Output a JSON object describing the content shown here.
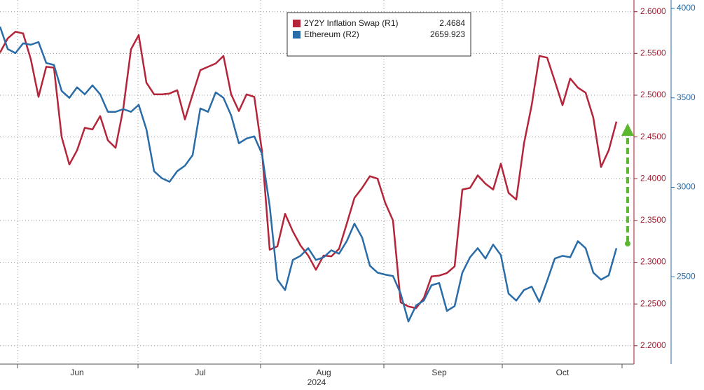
{
  "chart_data": {
    "type": "line",
    "xlabel": "2024",
    "categories": [
      null,
      null,
      null,
      null,
      null,
      null,
      null,
      null,
      null,
      null,
      "Jun",
      null,
      null,
      null,
      null,
      null,
      null,
      null,
      null,
      null,
      null,
      null,
      null,
      null,
      null,
      null,
      "Jul",
      null,
      null,
      null,
      null,
      null,
      null,
      null,
      null,
      null,
      null,
      null,
      null,
      null,
      null,
      null,
      "Aug",
      null,
      null,
      null,
      null,
      null,
      null,
      null,
      null,
      null,
      null,
      null,
      null,
      null,
      null,
      "Sep",
      null,
      null,
      null,
      null,
      null,
      null,
      null,
      null,
      null,
      null,
      null,
      null,
      null,
      null,
      null,
      "Oct",
      null,
      null,
      null,
      null,
      null,
      null,
      null
    ],
    "series": [
      {
        "name": "2Y2Y Inflation Swap (R1)",
        "color": "#b5253a",
        "last_label": "2.4684",
        "values": [
          2.551,
          2.568,
          2.576,
          2.574,
          2.543,
          2.498,
          2.534,
          2.533,
          2.45,
          2.417,
          2.434,
          2.461,
          2.459,
          2.475,
          2.446,
          2.437,
          2.484,
          2.555,
          2.572,
          2.515,
          2.501,
          2.501,
          2.502,
          2.506,
          2.471,
          2.501,
          2.53,
          2.534,
          2.538,
          2.547,
          2.501,
          2.481,
          2.501,
          2.498,
          2.433,
          2.315,
          2.319,
          2.358,
          2.337,
          2.32,
          2.308,
          2.291,
          2.308,
          2.307,
          2.316,
          2.346,
          2.377,
          2.389,
          2.403,
          2.4,
          2.371,
          2.35,
          2.252,
          2.247,
          2.245,
          2.257,
          2.283,
          2.284,
          2.287,
          2.295,
          2.387,
          2.389,
          2.404,
          2.394,
          2.387,
          2.418,
          2.383,
          2.375,
          2.442,
          2.488,
          2.547,
          2.545,
          2.517,
          2.488,
          2.52,
          2.509,
          2.503,
          2.473,
          2.414,
          2.434,
          2.4684
        ]
      },
      {
        "name": "Ethereum (R2)",
        "color": "#2a6ca8",
        "axis": "y2",
        "last_label": "2659.923",
        "values": [
          3898,
          3773,
          3750,
          3805,
          3797,
          3812,
          3695,
          3684,
          3539,
          3500,
          3559,
          3520,
          3570,
          3520,
          3422,
          3422,
          3437,
          3422,
          3461,
          3324,
          3090,
          3051,
          3031,
          3090,
          3121,
          3180,
          3441,
          3422,
          3531,
          3500,
          3402,
          3246,
          3273,
          3285,
          3187,
          2895,
          2484,
          2426,
          2594,
          2617,
          2660,
          2594,
          2609,
          2648,
          2629,
          2699,
          2797,
          2719,
          2562,
          2523,
          2512,
          2504,
          2406,
          2250,
          2340,
          2367,
          2453,
          2465,
          2309,
          2336,
          2523,
          2609,
          2660,
          2602,
          2680,
          2621,
          2406,
          2367,
          2426,
          2445,
          2359,
          2477,
          2602,
          2617,
          2609,
          2699,
          2660,
          2523,
          2484,
          2508,
          2659.923
        ]
      }
    ],
    "ylim": [
      2.178,
      2.614
    ],
    "yticks": [
      {
        "value": 2.2,
        "label": "2.2000"
      },
      {
        "value": 2.25,
        "label": "2.2500"
      },
      {
        "value": 2.3,
        "label": "2.3000"
      },
      {
        "value": 2.35,
        "label": "2.3500"
      },
      {
        "value": 2.4,
        "label": "2.4000"
      },
      {
        "value": 2.45,
        "label": "2.4500"
      },
      {
        "value": 2.5,
        "label": "2.5000"
      },
      {
        "value": 2.55,
        "label": "2.5500"
      },
      {
        "value": 2.6,
        "label": "2.6000"
      }
    ],
    "y2lim": [
      2012,
      4047
    ],
    "y2ticks": [
      2500,
      3000,
      3500,
      4000
    ],
    "grid": true
  }
}
